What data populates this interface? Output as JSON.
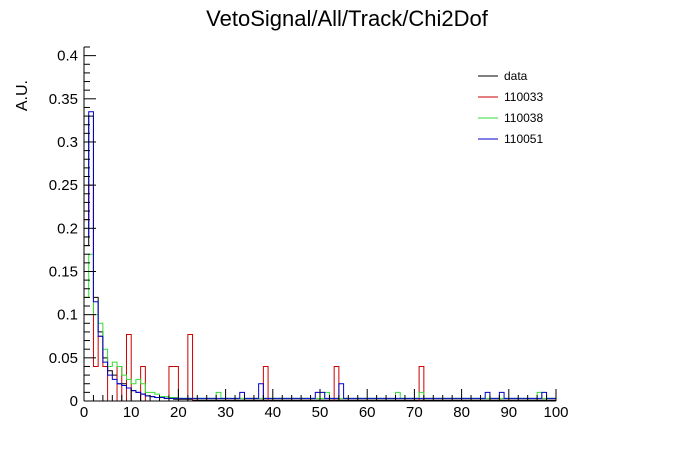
{
  "chart_data": {
    "type": "histogram",
    "title": "VetoSignal/All/Track/Chi2Dof",
    "xlabel": "",
    "ylabel": "A.U.",
    "xlim": [
      0,
      100
    ],
    "ylim": [
      0,
      0.41
    ],
    "bin_width": 1,
    "xticks": [
      0,
      10,
      20,
      30,
      40,
      50,
      60,
      70,
      80,
      90,
      100
    ],
    "yticks": [
      0,
      0.05,
      0.1,
      0.15,
      0.2,
      0.25,
      0.3,
      0.35,
      0.4
    ],
    "ytick_labels": [
      "0",
      "0.05",
      "0.1",
      "0.15",
      "0.2",
      "0.25",
      "0.3",
      "0.35",
      "0.4"
    ],
    "legend_position": "top-right",
    "grid": false,
    "series": [
      {
        "name": "data",
        "color": "#000000",
        "values": [
          0.18,
          0.33,
          0.12,
          0.08,
          0.05,
          0.035,
          0.03,
          0.02,
          0.02,
          0.015,
          0.012,
          0.01,
          0.008,
          0.006,
          0.005,
          0.004,
          0.004,
          0.003,
          0.003,
          0.002,
          0.002,
          0.002,
          0.002,
          0.001,
          0.001,
          0.001,
          0.001,
          0.001,
          0.001,
          0.001,
          0.001,
          0.001,
          0.001,
          0.001,
          0.001,
          0.001,
          0.001,
          0.001,
          0.001,
          0.001,
          0.001,
          0.001,
          0.001,
          0.001,
          0.001,
          0.001,
          0.001,
          0.001,
          0.001,
          0.001,
          0.001,
          0.001,
          0.001,
          0.001,
          0.001,
          0.001,
          0.001,
          0.001,
          0.001,
          0.001,
          0.001,
          0.001,
          0.001,
          0.001,
          0.001,
          0.001,
          0.001,
          0.001,
          0.001,
          0.001,
          0.001,
          0.001,
          0.001,
          0.001,
          0.001,
          0.001,
          0.001,
          0.001,
          0.001,
          0.001,
          0.001,
          0.001,
          0.001,
          0.001,
          0.001,
          0.001,
          0.001,
          0.001,
          0.001,
          0.001,
          0.001,
          0.001,
          0.001,
          0.001,
          0.001,
          0.001,
          0.001,
          0.001,
          0.001,
          0.001
        ]
      },
      {
        "name": "110033",
        "color": "#cc0000",
        "values": [
          0.21,
          0.25,
          0.04,
          0.075,
          0.04,
          0,
          0,
          0.04,
          0,
          0.077,
          0,
          0,
          0.04,
          0,
          0,
          0,
          0,
          0,
          0.04,
          0.04,
          0,
          0,
          0.077,
          0,
          0,
          0,
          0,
          0,
          0,
          0,
          0,
          0,
          0,
          0,
          0,
          0,
          0,
          0,
          0.04,
          0,
          0,
          0,
          0,
          0,
          0,
          0,
          0,
          0,
          0,
          0,
          0,
          0,
          0,
          0.04,
          0,
          0,
          0,
          0,
          0,
          0,
          0,
          0,
          0,
          0,
          0,
          0,
          0,
          0,
          0,
          0,
          0,
          0.04,
          0,
          0,
          0,
          0,
          0,
          0,
          0,
          0,
          0,
          0,
          0,
          0,
          0,
          0,
          0,
          0,
          0,
          0,
          0,
          0,
          0,
          0,
          0,
          0,
          0,
          0,
          0,
          0
        ]
      },
      {
        "name": "110038",
        "color": "#33dd33",
        "values": [
          0.12,
          0.17,
          0.1,
          0.09,
          0.06,
          0.04,
          0.045,
          0.04,
          0.03,
          0.025,
          0.02,
          0.025,
          0.02,
          0.01,
          0.01,
          0.008,
          0.005,
          0.005,
          0.004,
          0.004,
          0.003,
          0.003,
          0.003,
          0.003,
          0.003,
          0.003,
          0.003,
          0.003,
          0.01,
          0.003,
          0.003,
          0.003,
          0.003,
          0.003,
          0.003,
          0.003,
          0.003,
          0.003,
          0.003,
          0.003,
          0.003,
          0.003,
          0.003,
          0.003,
          0.003,
          0.003,
          0.003,
          0.003,
          0.003,
          0.003,
          0.003,
          0.01,
          0.003,
          0.003,
          0.003,
          0.003,
          0.003,
          0.003,
          0.003,
          0.003,
          0.003,
          0.003,
          0.003,
          0.003,
          0.003,
          0.003,
          0.01,
          0.003,
          0.003,
          0.003,
          0.003,
          0.01,
          0.003,
          0.003,
          0.003,
          0.003,
          0.003,
          0.003,
          0.003,
          0.003,
          0.003,
          0.003,
          0.003,
          0.003,
          0.003,
          0.003,
          0.003,
          0.003,
          0.003,
          0.003,
          0.003,
          0.003,
          0.003,
          0.003,
          0.003,
          0.003,
          0.01,
          0.003,
          0.003,
          0.003
        ]
      },
      {
        "name": "110051",
        "color": "#0000cc",
        "values": [
          0.19,
          0.335,
          0.115,
          0.075,
          0.045,
          0.03,
          0.025,
          0.02,
          0.018,
          0.015,
          0.012,
          0.01,
          0.008,
          0.006,
          0.005,
          0.004,
          0.004,
          0.003,
          0.003,
          0.003,
          0.003,
          0.003,
          0.003,
          0.003,
          0.003,
          0.003,
          0.003,
          0.003,
          0.003,
          0.003,
          0.003,
          0.003,
          0.003,
          0.01,
          0.003,
          0.003,
          0.003,
          0.02,
          0.003,
          0.003,
          0.003,
          0.003,
          0.003,
          0.003,
          0.003,
          0.003,
          0.003,
          0.003,
          0.003,
          0.01,
          0.01,
          0.003,
          0.003,
          0.003,
          0.02,
          0.003,
          0.003,
          0.003,
          0.003,
          0.003,
          0.003,
          0.003,
          0.003,
          0.003,
          0.003,
          0.003,
          0.003,
          0.003,
          0.003,
          0.003,
          0.003,
          0.003,
          0.003,
          0.003,
          0.003,
          0.003,
          0.003,
          0.003,
          0.003,
          0.003,
          0.003,
          0.003,
          0.003,
          0.003,
          0.003,
          0.01,
          0.003,
          0.003,
          0.01,
          0.003,
          0.003,
          0.003,
          0.003,
          0.003,
          0.003,
          0.003,
          0.003,
          0.01,
          0.003,
          0.003
        ]
      }
    ]
  }
}
